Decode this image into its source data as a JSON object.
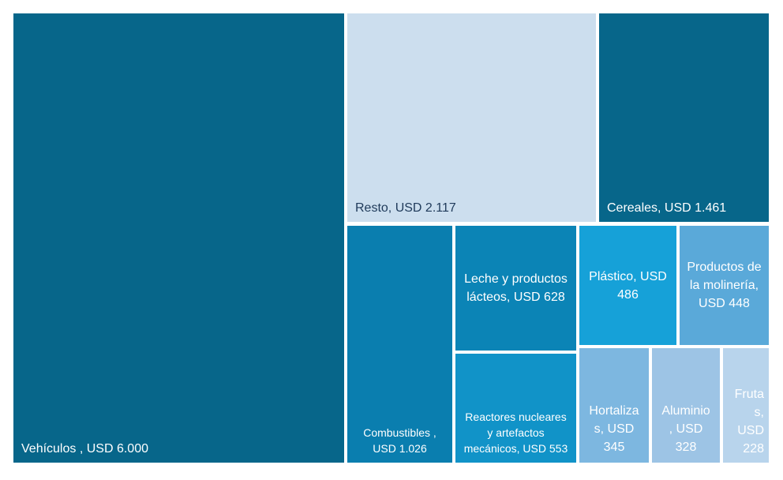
{
  "chart_data": {
    "type": "treemap",
    "title": "",
    "items": [
      {
        "name": "Vehículos ",
        "value": 6000,
        "label": "Vehículos , USD 6.000",
        "color": "#07668a",
        "text_color": "#ffffff"
      },
      {
        "name": "Resto",
        "value": 2117,
        "label": "Resto, USD 2.117",
        "color": "#ccdeee",
        "text_color": "#1f3a5a"
      },
      {
        "name": "Cereales",
        "value": 1461,
        "label": "Cereales, USD 1.461",
        "color": "#07668a",
        "text_color": "#ffffff"
      },
      {
        "name": "Combustibles ",
        "value": 1026,
        "label": "Combustibles , USD 1.026",
        "color": "#0a7eaf",
        "text_color": "#ffffff"
      },
      {
        "name": "Leche y productos lácteos",
        "value": 628,
        "label": "Leche y productos lácteos, USD 628",
        "color": "#0b84b6",
        "text_color": "#ffffff"
      },
      {
        "name": "Reactores nucleares y artefactos mecánicos",
        "value": 553,
        "label": "Reactores nucleares y artefactos mecánicos, USD 553",
        "color": "#1193c8",
        "text_color": "#ffffff"
      },
      {
        "name": "Plástico",
        "value": 486,
        "label": "Plástico, USD 486",
        "color": "#16a1d8",
        "text_color": "#ffffff"
      },
      {
        "name": "Productos de la molinería",
        "value": 448,
        "label": "Productos de la molinería, USD 448",
        "color": "#5aa9d9",
        "text_color": "#ffffff"
      },
      {
        "name": "Hortalizas",
        "value": 345,
        "label": "Hortaliza s, USD 345",
        "color": "#7db7e0",
        "text_color": "#ffffff"
      },
      {
        "name": "Aluminio",
        "value": 328,
        "label": "Aluminio , USD 328",
        "color": "#9dc4e5",
        "text_color": "#ffffff"
      },
      {
        "name": "Frutas",
        "value": 228,
        "label": "Fruta s, USD 228",
        "color": "#b8d4ec",
        "text_color": "#ffffff"
      }
    ]
  }
}
